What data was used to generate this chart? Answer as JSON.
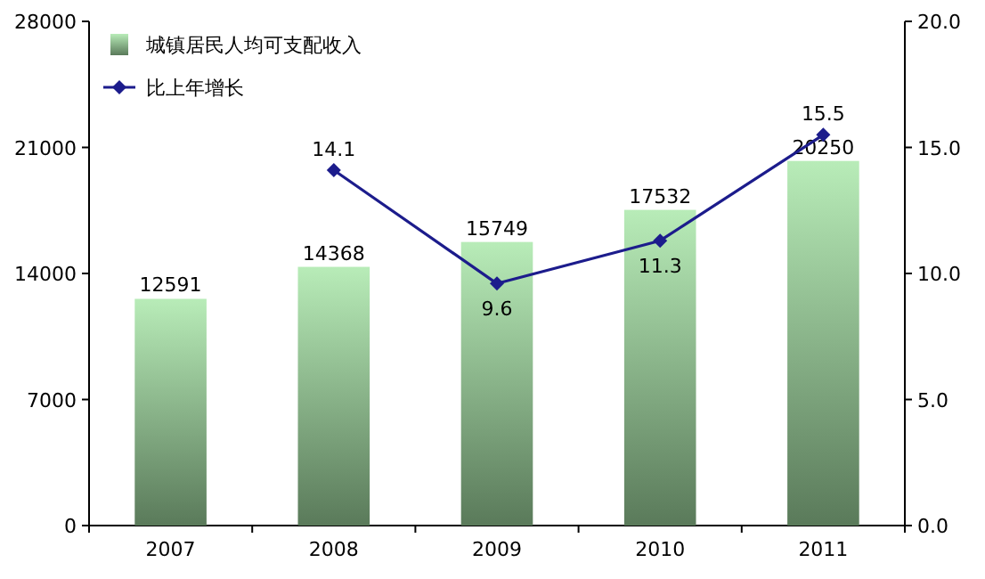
{
  "chart_data": {
    "type": "bar",
    "categories": [
      "2007",
      "2008",
      "2009",
      "2010",
      "2011"
    ],
    "series": [
      {
        "name": "城镇居民人均可支配收入",
        "color": "#b8ecb8",
        "values": [
          12591,
          14368,
          15749,
          17532,
          20250
        ]
      },
      {
        "name": "比上年增长",
        "type": "line",
        "axis": "y2",
        "color": "#1c1c8c",
        "values": [
          null,
          14.1,
          9.6,
          11.3,
          15.5
        ]
      }
    ],
    "ylim": [
      0,
      28000
    ],
    "yticks": [
      0,
      7000,
      14000,
      21000,
      28000
    ],
    "y2lim": [
      0,
      20
    ],
    "y2ticks": [
      {
        "value": 0,
        "label": "0.0"
      },
      {
        "value": 5,
        "label": "5.0"
      },
      {
        "value": 10,
        "label": "10.0"
      },
      {
        "value": 15,
        "label": "15.0"
      },
      {
        "value": 20,
        "label": "20.0"
      }
    ],
    "marker": "diamond",
    "data_labels": true,
    "legend": "top left"
  }
}
